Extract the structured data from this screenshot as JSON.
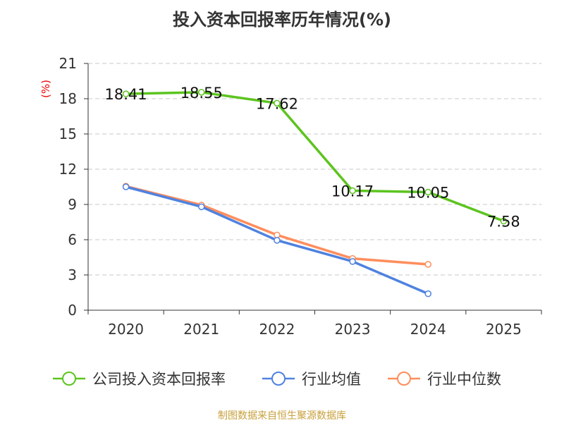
{
  "chart_data": {
    "type": "line",
    "title": "投入资本回报率历年情况(%)",
    "ylabel": "(%)",
    "xlabel": "",
    "categories": [
      "2020",
      "2021",
      "2022",
      "2023",
      "2024",
      "2025"
    ],
    "ylim": [
      0,
      21
    ],
    "yticks": [
      0,
      3,
      6,
      9,
      12,
      15,
      18,
      21
    ],
    "grid": true,
    "legend_position": "bottom",
    "series": [
      {
        "name": "公司投入资本回报率",
        "color": "#5cc41f",
        "values": [
          18.41,
          18.55,
          17.62,
          10.17,
          10.05,
          7.58
        ],
        "labels": [
          "18.41",
          "18.55",
          "17.62",
          "10.17",
          "10.05",
          "7.58"
        ]
      },
      {
        "name": "行业均值",
        "color": "#4f82e0",
        "values": [
          10.5,
          8.8,
          5.95,
          4.15,
          1.4,
          null
        ]
      },
      {
        "name": "行业中位数",
        "color": "#ff8d5c",
        "values": [
          10.55,
          8.95,
          6.4,
          4.4,
          3.9,
          null
        ]
      }
    ]
  },
  "source": "制图数据来自恒生聚源数据库"
}
